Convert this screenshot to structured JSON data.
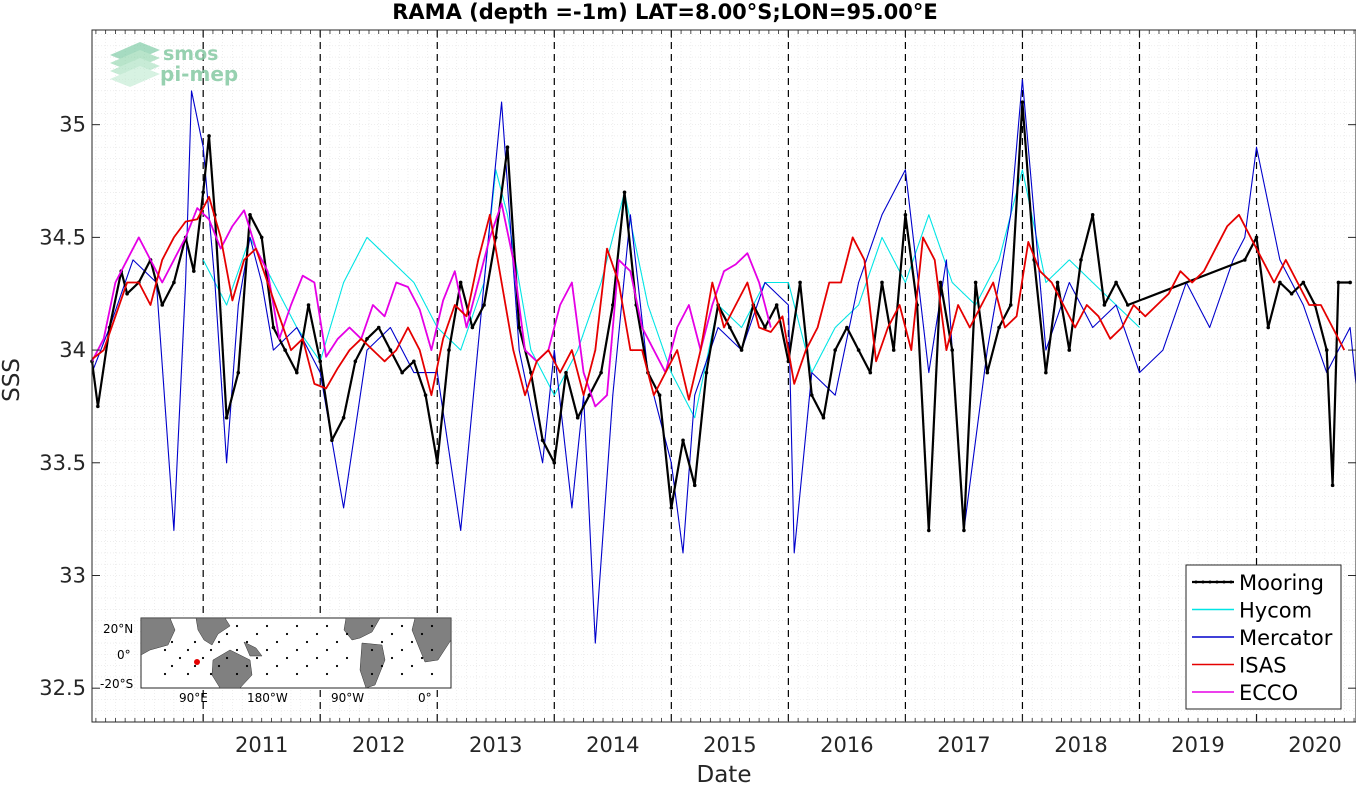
{
  "chart_data": {
    "type": "line",
    "title": "RAMA (depth =-1m) LAT=8.00°S;LON=95.00°E",
    "xlabel": "Date",
    "ylabel": "SSS",
    "xlim": [
      2010.05,
      2020.85
    ],
    "ylim": [
      32.35,
      35.42
    ],
    "x_tick_labels": [
      "2011",
      "2012",
      "2013",
      "2014",
      "2015",
      "2016",
      "2017",
      "2018",
      "2019",
      "2020"
    ],
    "x_tick_values": [
      2011,
      2012,
      2013,
      2014,
      2015,
      2016,
      2017,
      2018,
      2019,
      2020
    ],
    "y_tick_labels": [
      "32.5",
      "33",
      "33.5",
      "34",
      "34.5",
      "35"
    ],
    "y_tick_values": [
      32.5,
      33,
      33.5,
      34,
      34.5,
      35
    ],
    "grid": true,
    "year_boundary_lines": "dashed",
    "legend_position": "bottom-right",
    "series": [
      {
        "name": "Mooring",
        "color": "#000000",
        "style": "line-with-dots",
        "x": [
          2010.05,
          2010.1,
          2010.2,
          2010.3,
          2010.35,
          2010.45,
          2010.55,
          2010.65,
          2010.75,
          2010.85,
          2010.92,
          2011.0,
          2011.05,
          2011.1,
          2011.2,
          2011.3,
          2011.4,
          2011.5,
          2011.6,
          2011.7,
          2011.8,
          2011.9,
          2012.0,
          2012.1,
          2012.2,
          2012.3,
          2012.4,
          2012.5,
          2012.6,
          2012.7,
          2012.8,
          2012.9,
          2013.0,
          2013.1,
          2013.2,
          2013.3,
          2013.4,
          2013.5,
          2013.6,
          2013.7,
          2013.8,
          2013.9,
          2014.0,
          2014.1,
          2014.2,
          2014.3,
          2014.4,
          2014.5,
          2014.6,
          2014.7,
          2014.8,
          2014.9,
          2015.0,
          2015.1,
          2015.2,
          2015.3,
          2015.4,
          2015.5,
          2015.6,
          2015.7,
          2015.8,
          2015.9,
          2016.0,
          2016.1,
          2016.2,
          2016.3,
          2016.4,
          2016.5,
          2016.6,
          2016.7,
          2016.8,
          2016.9,
          2017.0,
          2017.1,
          2017.2,
          2017.3,
          2017.4,
          2017.5,
          2017.6,
          2017.7,
          2017.8,
          2017.9,
          2018.0,
          2018.1,
          2018.2,
          2018.3,
          2018.4,
          2018.5,
          2018.6,
          2018.7,
          2018.8,
          2018.9,
          2019.9,
          2020.0,
          2020.1,
          2020.2,
          2020.3,
          2020.4,
          2020.5,
          2020.6,
          2020.65,
          2020.7,
          2020.8
        ],
        "y": [
          33.95,
          33.75,
          34.1,
          34.35,
          34.25,
          34.3,
          34.4,
          34.2,
          34.3,
          34.5,
          34.35,
          34.7,
          34.95,
          34.6,
          33.7,
          33.9,
          34.6,
          34.5,
          34.1,
          34.0,
          33.9,
          34.2,
          33.95,
          33.6,
          33.7,
          33.95,
          34.05,
          34.1,
          34.0,
          33.9,
          33.95,
          33.8,
          33.5,
          34.0,
          34.3,
          34.1,
          34.2,
          34.5,
          34.9,
          34.1,
          33.9,
          33.6,
          33.5,
          33.9,
          33.7,
          33.8,
          33.9,
          34.2,
          34.7,
          34.2,
          33.9,
          33.8,
          33.3,
          33.6,
          33.4,
          33.9,
          34.2,
          34.1,
          34.0,
          34.2,
          34.1,
          34.2,
          33.95,
          34.3,
          33.8,
          33.7,
          34.0,
          34.1,
          34.0,
          33.9,
          34.3,
          34.0,
          34.6,
          34.2,
          33.2,
          34.3,
          34.0,
          33.2,
          34.3,
          33.9,
          34.1,
          34.2,
          35.1,
          34.4,
          33.9,
          34.3,
          34.0,
          34.4,
          34.6,
          34.2,
          34.3,
          34.2,
          34.4,
          34.5,
          34.1,
          34.3,
          34.25,
          34.3,
          34.2,
          34.0,
          33.4,
          34.3,
          34.3
        ]
      },
      {
        "name": "Hycom",
        "color": "#00e5e5",
        "style": "line",
        "x": [
          2011.0,
          2011.2,
          2011.4,
          2011.6,
          2011.8,
          2012.0,
          2012.2,
          2012.4,
          2012.6,
          2012.8,
          2013.0,
          2013.2,
          2013.4,
          2013.5,
          2013.6,
          2013.8,
          2014.0,
          2014.2,
          2014.4,
          2014.6,
          2014.8,
          2015.0,
          2015.2,
          2015.4,
          2015.6,
          2015.8,
          2016.0,
          2016.2,
          2016.4,
          2016.6,
          2016.8,
          2017.0,
          2017.2,
          2017.4,
          2017.6,
          2017.8,
          2018.0,
          2018.2,
          2018.4,
          2018.6,
          2018.8,
          2019.0
        ],
        "y": [
          34.4,
          34.2,
          34.5,
          34.3,
          34.1,
          33.95,
          34.3,
          34.5,
          34.4,
          34.3,
          34.1,
          34.0,
          34.3,
          34.8,
          34.6,
          34.0,
          33.8,
          34.0,
          34.3,
          34.7,
          34.2,
          33.9,
          33.7,
          34.2,
          34.1,
          34.3,
          34.3,
          33.9,
          34.1,
          34.2,
          34.5,
          34.3,
          34.6,
          34.3,
          34.2,
          34.4,
          34.8,
          34.3,
          34.4,
          34.3,
          34.2,
          34.1
        ]
      },
      {
        "name": "Mercator",
        "color": "#0000cc",
        "style": "line",
        "x": [
          2010.05,
          2010.2,
          2010.4,
          2010.6,
          2010.75,
          2010.85,
          2010.9,
          2011.0,
          2011.1,
          2011.2,
          2011.3,
          2011.4,
          2011.5,
          2011.6,
          2011.8,
          2012.0,
          2012.2,
          2012.4,
          2012.6,
          2012.8,
          2013.0,
          2013.2,
          2013.4,
          2013.55,
          2013.7,
          2013.9,
          2014.0,
          2014.15,
          2014.25,
          2014.35,
          2014.5,
          2014.65,
          2014.8,
          2015.0,
          2015.1,
          2015.2,
          2015.4,
          2015.6,
          2015.8,
          2016.0,
          2016.05,
          2016.2,
          2016.4,
          2016.6,
          2016.8,
          2017.0,
          2017.2,
          2017.35,
          2017.5,
          2017.7,
          2017.9,
          2018.0,
          2018.2,
          2018.4,
          2018.6,
          2018.8,
          2019.0,
          2019.2,
          2019.4,
          2019.6,
          2019.8,
          2019.9,
          2020.0,
          2020.2,
          2020.4,
          2020.6,
          2020.8,
          2020.85
        ],
        "y": [
          33.9,
          34.1,
          34.4,
          34.3,
          33.2,
          34.3,
          35.15,
          34.9,
          34.3,
          33.5,
          34.2,
          34.5,
          34.3,
          34.0,
          34.1,
          33.9,
          33.3,
          34.0,
          34.1,
          33.9,
          33.9,
          33.2,
          34.3,
          35.1,
          34.0,
          33.5,
          34.0,
          33.3,
          33.8,
          32.7,
          33.8,
          34.6,
          33.9,
          33.5,
          33.1,
          33.8,
          34.1,
          34.0,
          34.3,
          34.2,
          33.1,
          33.9,
          33.8,
          34.3,
          34.6,
          34.8,
          33.9,
          34.4,
          33.2,
          34.0,
          34.6,
          35.2,
          34.0,
          34.3,
          34.1,
          34.2,
          33.9,
          34.0,
          34.3,
          34.1,
          34.4,
          34.5,
          34.9,
          34.4,
          34.2,
          33.9,
          34.1,
          33.85
        ]
      },
      {
        "name": "ISAS",
        "color": "#e50000",
        "style": "line",
        "x": [
          2010.05,
          2010.15,
          2010.25,
          2010.35,
          2010.45,
          2010.55,
          2010.65,
          2010.75,
          2010.85,
          2010.95,
          2011.05,
          2011.15,
          2011.25,
          2011.35,
          2011.45,
          2011.55,
          2011.65,
          2011.75,
          2011.85,
          2011.95,
          2012.05,
          2012.15,
          2012.25,
          2012.35,
          2012.45,
          2012.55,
          2012.65,
          2012.75,
          2012.85,
          2012.95,
          2013.05,
          2013.15,
          2013.25,
          2013.35,
          2013.45,
          2013.55,
          2013.65,
          2013.75,
          2013.85,
          2013.95,
          2014.05,
          2014.15,
          2014.25,
          2014.35,
          2014.45,
          2014.55,
          2014.65,
          2014.75,
          2014.85,
          2014.95,
          2015.05,
          2015.15,
          2015.25,
          2015.35,
          2015.45,
          2015.55,
          2015.65,
          2015.75,
          2015.85,
          2015.95,
          2016.05,
          2016.15,
          2016.25,
          2016.35,
          2016.45,
          2016.55,
          2016.65,
          2016.75,
          2016.85,
          2016.95,
          2017.05,
          2017.15,
          2017.25,
          2017.35,
          2017.45,
          2017.55,
          2017.65,
          2017.75,
          2017.85,
          2017.95,
          2018.05,
          2018.15,
          2018.25,
          2018.35,
          2018.45,
          2018.55,
          2018.65,
          2018.75,
          2018.85,
          2018.95,
          2019.05,
          2019.15,
          2019.25,
          2019.35,
          2019.45,
          2019.55,
          2019.65,
          2019.75,
          2019.85,
          2019.95,
          2020.05,
          2020.15,
          2020.25,
          2020.35,
          2020.45,
          2020.55,
          2020.65,
          2020.75
        ],
        "y": [
          33.96,
          34.0,
          34.15,
          34.3,
          34.3,
          34.2,
          34.4,
          34.5,
          34.57,
          34.58,
          34.68,
          34.5,
          34.22,
          34.4,
          34.45,
          34.3,
          34.15,
          34.0,
          34.05,
          33.85,
          33.83,
          33.92,
          34.0,
          34.05,
          34.0,
          33.95,
          34.0,
          34.1,
          34.0,
          33.8,
          34.05,
          34.2,
          34.15,
          34.4,
          34.6,
          34.3,
          34.0,
          33.8,
          33.95,
          34.0,
          33.9,
          34.0,
          33.8,
          34.0,
          34.45,
          34.3,
          34.0,
          34.0,
          33.8,
          33.9,
          34.0,
          33.78,
          34.0,
          34.3,
          34.1,
          34.2,
          34.3,
          34.1,
          34.08,
          34.15,
          33.85,
          34.0,
          34.1,
          34.3,
          34.3,
          34.5,
          34.4,
          33.95,
          34.1,
          34.2,
          34.0,
          34.5,
          34.4,
          34.0,
          34.2,
          34.1,
          34.2,
          34.3,
          34.1,
          34.15,
          34.48,
          34.35,
          34.3,
          34.2,
          34.1,
          34.2,
          34.15,
          34.05,
          34.1,
          34.2,
          34.15,
          34.2,
          34.25,
          34.35,
          34.3,
          34.35,
          34.45,
          34.55,
          34.6,
          34.5,
          34.4,
          34.3,
          34.4,
          34.3,
          34.2,
          34.2,
          34.1,
          34.0
        ]
      },
      {
        "name": "ECCO",
        "color": "#e500e5",
        "style": "line",
        "x": [
          2010.05,
          2010.15,
          2010.25,
          2010.35,
          2010.45,
          2010.55,
          2010.65,
          2010.75,
          2010.85,
          2010.95,
          2011.05,
          2011.15,
          2011.25,
          2011.35,
          2011.45,
          2011.55,
          2011.65,
          2011.75,
          2011.85,
          2011.95,
          2012.05,
          2012.15,
          2012.25,
          2012.35,
          2012.45,
          2012.55,
          2012.65,
          2012.75,
          2012.85,
          2012.95,
          2013.05,
          2013.15,
          2013.25,
          2013.35,
          2013.45,
          2013.55,
          2013.65,
          2013.75,
          2013.85,
          2013.95,
          2014.05,
          2014.15,
          2014.25,
          2014.35,
          2014.45,
          2014.55,
          2014.65,
          2014.75,
          2014.85,
          2014.95,
          2015.05,
          2015.15,
          2015.25,
          2015.35,
          2015.45,
          2015.55,
          2015.65,
          2015.75,
          2015.85
        ],
        "y": [
          33.95,
          34.05,
          34.3,
          34.4,
          34.5,
          34.4,
          34.3,
          34.4,
          34.5,
          34.63,
          34.58,
          34.45,
          34.55,
          34.62,
          34.45,
          34.35,
          34.05,
          34.2,
          34.33,
          34.3,
          33.97,
          34.05,
          34.1,
          34.05,
          34.2,
          34.15,
          34.3,
          34.28,
          34.18,
          34.0,
          34.22,
          34.35,
          34.1,
          34.3,
          34.5,
          34.65,
          34.4,
          34.0,
          33.95,
          34.0,
          34.2,
          34.3,
          33.9,
          33.75,
          33.8,
          34.4,
          34.35,
          34.1,
          34.0,
          33.9,
          34.1,
          34.2,
          34.0,
          34.2,
          34.35,
          34.38,
          34.43,
          34.3,
          34.1
        ]
      }
    ]
  },
  "inset_map": {
    "lat_labels": [
      "20°N",
      "0°",
      "-20°S"
    ],
    "lon_labels": [
      "90°E",
      "180°W",
      "90°W",
      "0°"
    ]
  },
  "logo": {
    "line1": "smos",
    "line2": "pi-mep"
  }
}
